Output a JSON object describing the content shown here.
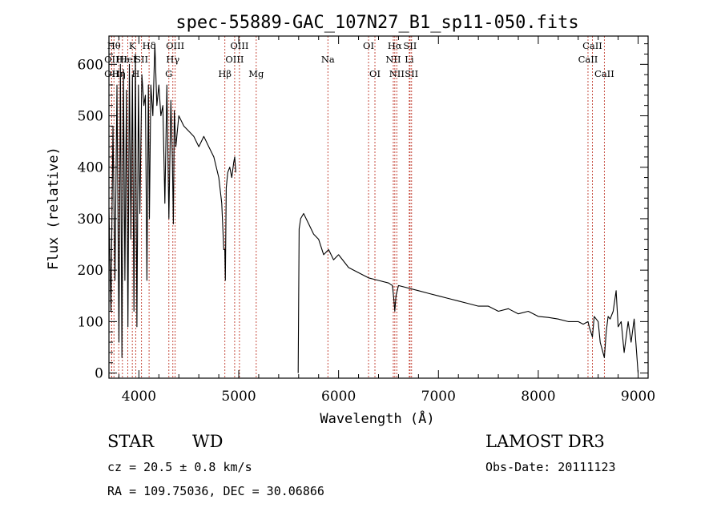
{
  "chart_data": {
    "type": "line",
    "title": "spec-55889-GAC_107N27_B1_sp11-050.fits",
    "xlabel": "Wavelength (Å)",
    "ylabel": "Flux (relative)",
    "xlim": [
      3700,
      9100
    ],
    "ylim": [
      -10,
      655
    ],
    "xticks": [
      4000,
      5000,
      6000,
      7000,
      8000,
      9000
    ],
    "yticks": [
      0,
      100,
      200,
      300,
      400,
      500,
      600
    ],
    "series": [
      {
        "name": "flux",
        "x": [
          3700,
          3720,
          3740,
          3760,
          3780,
          3800,
          3815,
          3830,
          3845,
          3860,
          3875,
          3890,
          3905,
          3920,
          3935,
          3950,
          3965,
          3980,
          3995,
          4010,
          4030,
          4050,
          4065,
          4080,
          4095,
          4105,
          4120,
          4140,
          4160,
          4180,
          4200,
          4220,
          4240,
          4260,
          4280,
          4300,
          4320,
          4335,
          4345,
          4355,
          4370,
          4400,
          4450,
          4500,
          4550,
          4600,
          4650,
          4700,
          4750,
          4800,
          4830,
          4850,
          4860,
          4866,
          4875,
          4890,
          4910,
          4930,
          4950,
          4960,
          4970,
          5000,
          5100,
          5300,
          5500,
          5595,
          5605,
          5620,
          5650,
          5700,
          5750,
          5800,
          5850,
          5900,
          5950,
          6000,
          6100,
          6200,
          6300,
          6400,
          6500,
          6540,
          6555,
          6563,
          6575,
          6600,
          6700,
          6800,
          6900,
          7000,
          7100,
          7200,
          7300,
          7400,
          7500,
          7600,
          7700,
          7800,
          7900,
          8000,
          8100,
          8200,
          8300,
          8400,
          8450,
          8498,
          8510,
          8542,
          8560,
          8600,
          8620,
          8662,
          8680,
          8700,
          8720,
          8750,
          8780,
          8800,
          8830,
          8860,
          8900,
          8930,
          8960,
          9000
        ],
        "values": [
          320,
          120,
          480,
          180,
          560,
          60,
          600,
          30,
          590,
          180,
          550,
          90,
          600,
          260,
          580,
          120,
          620,
          90,
          560,
          310,
          580,
          520,
          540,
          180,
          560,
          300,
          560,
          500,
          640,
          520,
          560,
          500,
          520,
          330,
          560,
          300,
          530,
          420,
          290,
          510,
          440,
          500,
          480,
          470,
          460,
          440,
          460,
          440,
          420,
          380,
          330,
          240,
          240,
          180,
          360,
          390,
          400,
          380,
          410,
          420,
          390,
          null,
          null,
          null,
          null,
          0,
          280,
          300,
          310,
          290,
          270,
          260,
          230,
          240,
          220,
          230,
          205,
          195,
          185,
          180,
          175,
          170,
          140,
          120,
          150,
          170,
          165,
          160,
          155,
          150,
          145,
          140,
          135,
          130,
          130,
          120,
          125,
          115,
          120,
          110,
          108,
          105,
          100,
          100,
          95,
          100,
          90,
          70,
          110,
          100,
          60,
          30,
          80,
          110,
          105,
          120,
          160,
          90,
          100,
          40,
          100,
          60,
          105,
          0
        ]
      }
    ],
    "lines": [
      {
        "wl": 3750,
        "label": "Hθ",
        "row": 1
      },
      {
        "wl": 3727,
        "label": "OII",
        "row": 2
      },
      {
        "wl": 3727,
        "label": "OII",
        "row": 3
      },
      {
        "wl": 3798,
        "label": "Hη",
        "row": 3
      },
      {
        "wl": 3835,
        "label": "Hε",
        "row": 2
      },
      {
        "wl": 3889,
        "label": "HeI",
        "row": 2
      },
      {
        "wl": 3934,
        "label": "K",
        "row": 1
      },
      {
        "wl": 3968,
        "label": "H",
        "row": 3
      },
      {
        "wl": 4026,
        "label": "SII",
        "row": 2
      },
      {
        "wl": 4102,
        "label": "Hδ",
        "row": 1
      },
      {
        "wl": 4300,
        "label": "G",
        "row": 3
      },
      {
        "wl": 4340,
        "label": "Hγ",
        "row": 2
      },
      {
        "wl": 4363,
        "label": "OIII",
        "row": 1
      },
      {
        "wl": 4861,
        "label": "Hβ",
        "row": 3
      },
      {
        "wl": 4959,
        "label": "OIII",
        "row": 2
      },
      {
        "wl": 5007,
        "label": "OIII",
        "row": 1
      },
      {
        "wl": 5175,
        "label": "Mg",
        "row": 3
      },
      {
        "wl": 5893,
        "label": "Na",
        "row": 2
      },
      {
        "wl": 6300,
        "label": "OI",
        "row": 1
      },
      {
        "wl": 6364,
        "label": "OI",
        "row": 3
      },
      {
        "wl": 6548,
        "label": "NII",
        "row": 2
      },
      {
        "wl": 6563,
        "label": "Hα",
        "row": 1
      },
      {
        "wl": 6583,
        "label": "NII",
        "row": 3
      },
      {
        "wl": 6708,
        "label": "Li",
        "row": 2
      },
      {
        "wl": 6716,
        "label": "SII",
        "row": 1
      },
      {
        "wl": 6731,
        "label": "SII",
        "row": 3
      },
      {
        "wl": 8498,
        "label": "CaII",
        "row": 2
      },
      {
        "wl": 8542,
        "label": "CaII",
        "row": 1
      },
      {
        "wl": 8662,
        "label": "CaII",
        "row": 3
      }
    ]
  },
  "info": {
    "class": "STAR",
    "subclass": "WD",
    "cz": "cz = 20.5 ± 0.8 km/s",
    "radec": "RA = 109.75036, DEC =  30.06866",
    "survey": "LAMOST DR3",
    "obsdate": "Obs-Date: 20111123"
  },
  "colors": {
    "line_marker": "#c0392b",
    "spectrum": "#000000",
    "axes": "#000000"
  }
}
